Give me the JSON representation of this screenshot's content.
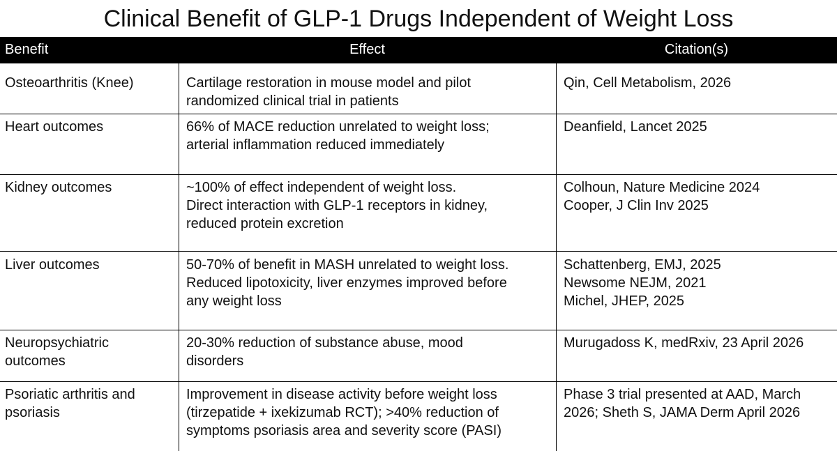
{
  "title": "Clinical Benefit of GLP-1 Drugs Independent of Weight Loss",
  "table": {
    "header": [
      "Benefit",
      "Effect",
      "Citation(s)"
    ],
    "rows": [
      [
        [
          "Osteoarthritis (Knee)"
        ],
        [
          "Cartilage restoration in mouse model and pilot",
          "randomized clinical trial in patients"
        ],
        [
          "Qin, Cell Metabolism, 2026"
        ]
      ],
      [
        [
          "Heart outcomes"
        ],
        [
          "66% of MACE reduction unrelated to weight loss;",
          "arterial inflammation reduced immediately"
        ],
        [
          "Deanfield, Lancet 2025"
        ]
      ],
      [
        [
          "Kidney outcomes"
        ],
        [
          "~100% of effect independent of weight loss.",
          "Direct interaction with GLP-1 receptors in kidney,",
          "reduced protein excretion"
        ],
        [
          "Colhoun, Nature Medicine 2024",
          "Cooper, J Clin Inv 2025"
        ]
      ],
      [
        [
          "Liver outcomes"
        ],
        [
          "50-70% of benefit in MASH unrelated to weight loss.",
          "Reduced lipotoxicity, liver enzymes improved before",
          "any weight loss"
        ],
        [
          "Schattenberg, EMJ, 2025",
          "Newsome NEJM, 2021",
          "Michel, JHEP, 2025"
        ]
      ],
      [
        [
          "Neuropsychiatric",
          "outcomes"
        ],
        [
          "20-30% reduction of substance abuse, mood",
          "disorders"
        ],
        [
          "Murugadoss K, medRxiv, 23 April 2026"
        ]
      ],
      [
        [
          "Psoriatic arthritis and",
          "psoriasis"
        ],
        [
          "Improvement in disease activity before weight loss",
          "(tirzepatide + ixekizumab RCT); >40% reduction of",
          "symptoms psoriasis area and severity score (PASI)"
        ],
        [
          "Phase 3 trial presented at AAD, March",
          "2026; Sheth S, JAMA Derm April 2026"
        ]
      ]
    ]
  }
}
